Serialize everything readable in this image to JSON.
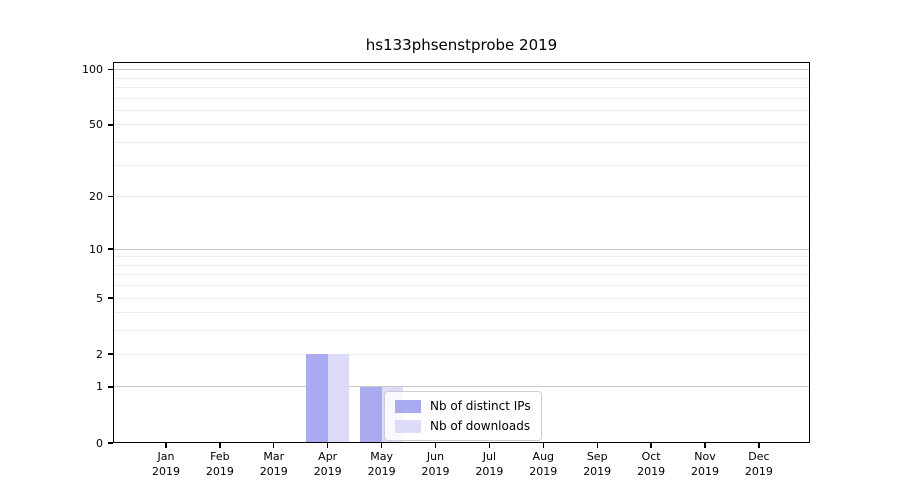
{
  "chart_data": {
    "type": "bar",
    "title": "hs133phsenstprobe 2019",
    "categories": [
      {
        "month": "Jan",
        "year": "2019"
      },
      {
        "month": "Feb",
        "year": "2019"
      },
      {
        "month": "Mar",
        "year": "2019"
      },
      {
        "month": "Apr",
        "year": "2019"
      },
      {
        "month": "May",
        "year": "2019"
      },
      {
        "month": "Jun",
        "year": "2019"
      },
      {
        "month": "Jul",
        "year": "2019"
      },
      {
        "month": "Aug",
        "year": "2019"
      },
      {
        "month": "Sep",
        "year": "2019"
      },
      {
        "month": "Oct",
        "year": "2019"
      },
      {
        "month": "Nov",
        "year": "2019"
      },
      {
        "month": "Dec",
        "year": "2019"
      }
    ],
    "series": [
      {
        "name": "Nb of distinct IPs",
        "color": "#aaaaf0",
        "values": [
          0,
          0,
          0,
          2,
          1,
          0,
          0,
          0,
          0,
          0,
          0,
          0
        ]
      },
      {
        "name": "Nb of downloads",
        "color": "#dcdcf8",
        "values": [
          0,
          0,
          0,
          2,
          1,
          0,
          0,
          0,
          0,
          0,
          0,
          0
        ]
      }
    ],
    "xlabel": "",
    "ylabel": "",
    "y_scale": "log1p",
    "y_ticks": [
      0,
      1,
      2,
      5,
      10,
      20,
      50,
      100
    ],
    "y_range": [
      0,
      110
    ],
    "major_gridlines": [
      1,
      10,
      100
    ],
    "minor_gridlines": [
      2,
      3,
      4,
      5,
      6,
      7,
      8,
      9,
      20,
      30,
      40,
      50,
      60,
      70,
      80,
      90
    ],
    "grid": true,
    "legend_position": "lower-right-inside",
    "colors": {
      "grid_major": "#c8c8c8",
      "grid_minor": "#ececec",
      "spine": "#000000",
      "text": "#000000",
      "legend_border": "#cccccc",
      "legend_bg": "rgba(255,255,255,0.8)"
    }
  }
}
